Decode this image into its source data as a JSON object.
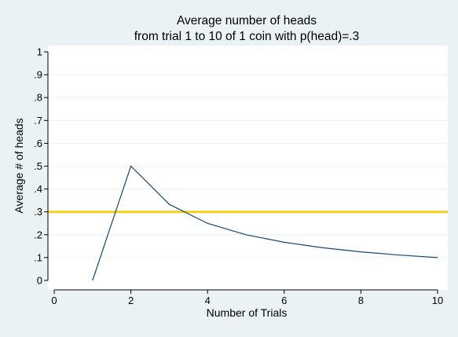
{
  "chart_data": {
    "type": "line",
    "title": "Average number of heads",
    "subtitle": "from trial 1 to 10 of 1 coin with p(head)=.3",
    "xlabel": "Number of Trials",
    "ylabel": "Average # of heads",
    "xlim": [
      0,
      10
    ],
    "ylim": [
      0,
      1
    ],
    "x_ticks": [
      0,
      2,
      4,
      6,
      8,
      10
    ],
    "x_tick_labels": [
      "0",
      "2",
      "4",
      "6",
      "8",
      "10"
    ],
    "y_ticks": [
      0,
      0.1,
      0.2,
      0.3,
      0.4,
      0.5,
      0.6,
      0.7,
      0.8,
      0.9,
      1
    ],
    "y_tick_labels": [
      "0",
      ".1",
      ".2",
      ".3",
      ".4",
      ".5",
      ".6",
      ".7",
      ".8",
      ".9",
      "1"
    ],
    "grid": "horizontal",
    "series": [
      {
        "x": [
          1,
          2,
          3,
          4,
          5,
          6,
          7,
          8,
          9,
          10
        ],
        "values": [
          0,
          0.5,
          0.333,
          0.25,
          0.2,
          0.167,
          0.143,
          0.125,
          0.111,
          0.1
        ],
        "color": "#1a476f"
      }
    ],
    "reference_line": {
      "y": 0.3,
      "color": "#f2d11b"
    },
    "colors": {
      "background": "#eaf2f3",
      "plot_area": "#ffffff",
      "grid": "#eaf2f3",
      "axis": "#000000"
    }
  }
}
